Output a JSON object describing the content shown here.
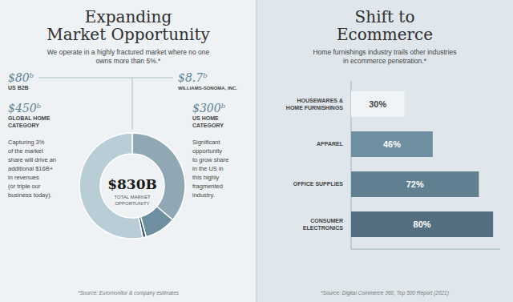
{
  "chart_data": [
    {
      "type": "pie",
      "title": "Expanding\nMarket Opportunity",
      "subtitle": "We operate in a highly fractured market where no one\nowns more than 5%.*",
      "values": [
        300,
        80,
        8.7,
        441.3
      ],
      "colors": [
        "#8fa8b4",
        "#6d8fa0",
        "#3d5a6e",
        "#b8cdd6"
      ],
      "annotations": [
        "$80ᵇ",
        "US B2B",
        "$450ᵇ",
        "GLOBAL HOME\nCATEGORY",
        "$8.7ᵇ",
        "WILLIAMS-SONOMA, INC.",
        "$300ᵇ",
        "US HOME\nCATEGORY",
        "$830B",
        "TOTAL MARKET\nOPPORTUNITY",
        "Capturing 3%\nof the market\nshare will drive an\nadditional $16B+\nin revenues\n(or triple our\nbusiness today).",
        "Significant\nopportunity\nto grow share\nin the US in\nthis highly\nfragmented\nindustry.",
        "*Source: Euromonitor & company estimates"
      ]
    },
    {
      "type": "bar",
      "orientation": "horizontal",
      "title": "Shift to\nEcommerce",
      "subtitle": "Home furnishings industry trails other industries\nin ecommerce penetration.*",
      "categories": [
        "HOUSEWARES &\nHOME FURNISHINGS",
        "APPAREL",
        "OFFICE SUPPLIES",
        "CONSUMER\nELECTRONICS"
      ],
      "values": [
        30,
        46,
        72,
        80
      ],
      "value_labels": [
        "30%",
        "46%",
        "72%",
        "80%"
      ],
      "data_labels": true,
      "colors": [
        "#f0f4f6",
        "#6e8fa0",
        "#607f90",
        "#566f80"
      ],
      "xlim": [
        0,
        84
      ],
      "tick_labels": "y",
      "annotations": [
        "*Source: Digital Commerce 360, Top 500 Report (2021)"
      ]
    }
  ]
}
